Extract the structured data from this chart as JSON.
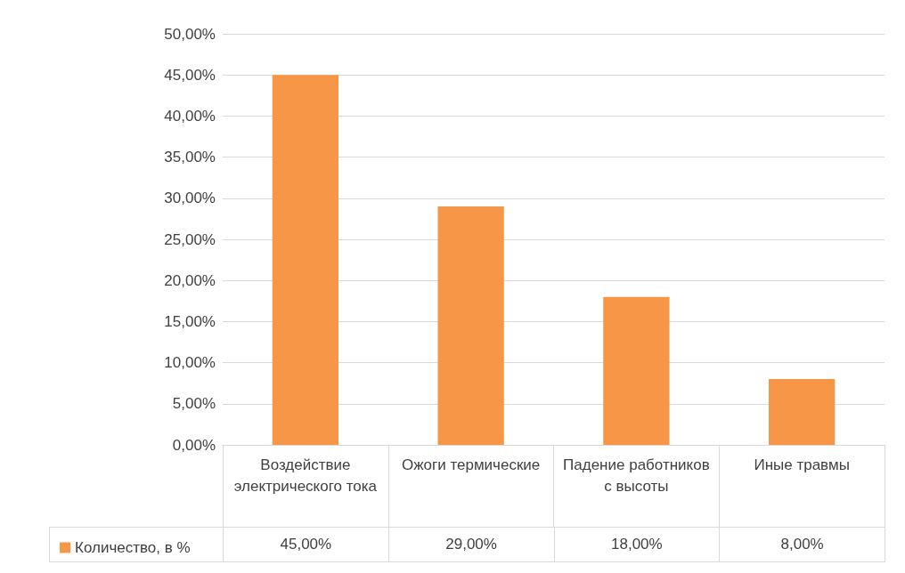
{
  "chart_data": {
    "type": "bar",
    "categories": [
      "Воздействие электрического тока",
      "Ожоги термические",
      "Падение работников с высоты",
      "Иные травмы"
    ],
    "series": [
      {
        "name": "Количество, в %",
        "color": "#f79646",
        "values": [
          45,
          29,
          18,
          8
        ],
        "value_labels": [
          "45,00%",
          "29,00%",
          "18,00%",
          "8,00%"
        ]
      }
    ],
    "ylim": [
      0,
      50
    ],
    "yticks": [
      {
        "value": 0,
        "label": "0,00%"
      },
      {
        "value": 5,
        "label": "5,00%"
      },
      {
        "value": 10,
        "label": "10,00%"
      },
      {
        "value": 15,
        "label": "15,00%"
      },
      {
        "value": 20,
        "label": "20,00%"
      },
      {
        "value": 25,
        "label": "25,00%"
      },
      {
        "value": 30,
        "label": "30,00%"
      },
      {
        "value": 35,
        "label": "35,00%"
      },
      {
        "value": 40,
        "label": "40,00%"
      },
      {
        "value": 45,
        "label": "45,00%"
      },
      {
        "value": 50,
        "label": "50,00%"
      }
    ],
    "grid": "y",
    "legend": "bottom left"
  }
}
